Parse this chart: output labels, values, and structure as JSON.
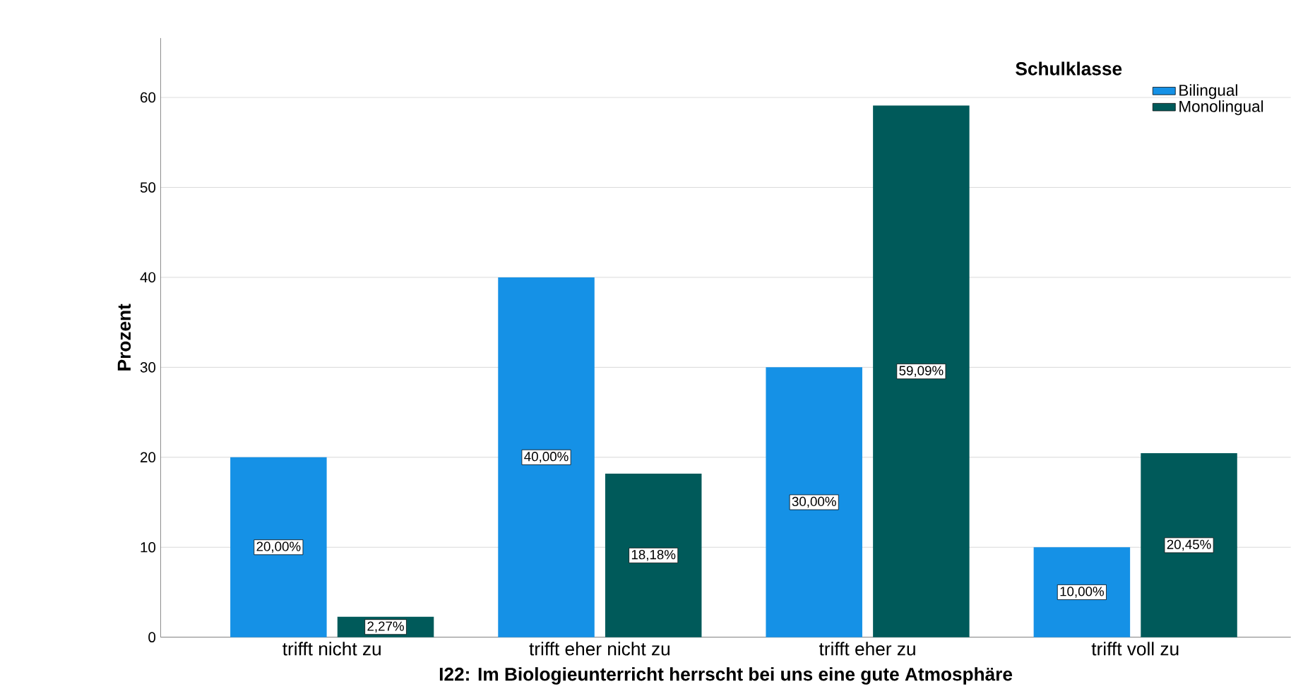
{
  "chart_data": {
    "type": "bar",
    "xlabel": "I22: Im Biologieunterricht herrscht bei uns eine gute Atmosphäre",
    "ylabel": "Prozent",
    "legend_title": "Schulklasse",
    "legend": "top right",
    "grid": "y",
    "categories": [
      "trifft nicht zu",
      "trifft eher nicht zu",
      "trifft eher zu",
      "trifft voll zu"
    ],
    "ylim": [
      0,
      66.6
    ],
    "yticks": [
      0,
      10,
      20,
      30,
      40,
      50,
      60
    ],
    "series": [
      {
        "name": "Bilingual",
        "color": "#1591e6",
        "values": [
          20,
          40,
          30,
          10
        ],
        "value_labels": [
          "20,00%",
          "40,00%",
          "30,00%",
          "10,00%"
        ]
      },
      {
        "name": "Monolingual",
        "color": "#005a5a",
        "values": [
          2.27,
          18.18,
          59.09,
          20.45
        ],
        "value_labels": [
          "2,27%",
          "18,18%",
          "59,09%",
          "20,45%"
        ]
      }
    ]
  }
}
